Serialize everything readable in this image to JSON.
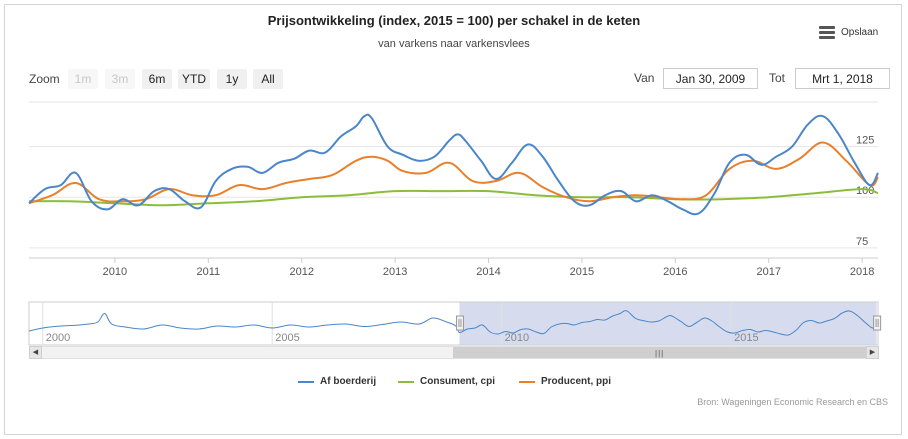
{
  "title": "Prijsontwikkeling (index, 2015 = 100) per schakel in de keten",
  "subtitle": "van varkens naar varkensvlees",
  "menu_label": "Opslaan",
  "range_selector": {
    "zoom_label": "Zoom",
    "buttons": [
      {
        "label": "1m",
        "state": "disabled"
      },
      {
        "label": "3m",
        "state": "disabled"
      },
      {
        "label": "6m",
        "state": "normal"
      },
      {
        "label": "YTD",
        "state": "normal"
      },
      {
        "label": "1y",
        "state": "normal"
      },
      {
        "label": "All",
        "state": "normal"
      }
    ],
    "from_label": "Van",
    "from_value": "Jan 30, 2009",
    "to_label": "Tot",
    "to_value": "Mrt 1, 2018"
  },
  "navigator": {
    "x_ticks": [
      "2000",
      "2005",
      "2010",
      "2015"
    ]
  },
  "credits": "Bron: Wageningen Economic Research en CBS",
  "colors": {
    "blue": "#4a86c8",
    "green": "#8cbd3a",
    "orange": "#e8802c",
    "navigator_mask": "#c8d0e8"
  },
  "chart_data": {
    "type": "line",
    "x_ticks": [
      "2010",
      "2011",
      "2012",
      "2013",
      "2014",
      "2015",
      "2016",
      "2017",
      "2018"
    ],
    "y_ticks": [
      "75",
      "100",
      "125"
    ],
    "xlim": [
      2009.08,
      2018.17
    ],
    "ylim": [
      70,
      147
    ],
    "series": [
      {
        "name": "Af boerderij",
        "color": "#4a86c8",
        "x": [
          2009.08,
          2009.25,
          2009.42,
          2009.58,
          2009.75,
          2009.92,
          2010.08,
          2010.25,
          2010.42,
          2010.58,
          2010.75,
          2010.92,
          2011.08,
          2011.25,
          2011.42,
          2011.58,
          2011.75,
          2011.92,
          2012.08,
          2012.25,
          2012.42,
          2012.58,
          2012.67,
          2012.75,
          2012.92,
          2013.08,
          2013.25,
          2013.42,
          2013.58,
          2013.67,
          2013.75,
          2013.92,
          2014.08,
          2014.25,
          2014.42,
          2014.58,
          2014.75,
          2014.92,
          2015.08,
          2015.25,
          2015.42,
          2015.58,
          2015.75,
          2015.92,
          2016.08,
          2016.25,
          2016.42,
          2016.58,
          2016.75,
          2016.92,
          2017.08,
          2017.25,
          2017.42,
          2017.58,
          2017.75,
          2017.92,
          2018.08,
          2018.17
        ],
        "values": [
          97,
          104,
          106,
          112,
          98,
          94,
          99,
          96,
          103,
          104,
          98,
          95,
          108,
          114,
          115,
          112,
          117,
          119,
          123,
          122,
          130,
          135,
          140,
          139,
          125,
          121,
          118,
          120,
          128,
          131,
          128,
          118,
          109,
          117,
          126,
          120,
          108,
          98,
          96,
          101,
          103,
          98,
          101,
          98,
          94,
          92,
          102,
          117,
          121,
          116,
          120,
          125,
          136,
          140,
          131,
          117,
          106,
          112
        ],
        "labels_right": "100"
      },
      {
        "name": "Consument, cpi",
        "color": "#8cbd3a",
        "x": [
          2009.08,
          2009.5,
          2010.0,
          2010.5,
          2011.0,
          2011.5,
          2012.0,
          2012.5,
          2013.0,
          2013.5,
          2014.0,
          2014.5,
          2015.0,
          2015.5,
          2016.0,
          2016.5,
          2017.0,
          2017.5,
          2018.0,
          2018.17
        ],
        "values": [
          98,
          98,
          97,
          96,
          97,
          98,
          100,
          101,
          103,
          103,
          103,
          101,
          100,
          100,
          99,
          99,
          100,
          102,
          104,
          102
        ]
      },
      {
        "name": "Producent, ppi",
        "color": "#e8802c",
        "x": [
          2009.08,
          2009.33,
          2009.58,
          2009.83,
          2010.08,
          2010.33,
          2010.58,
          2010.83,
          2011.08,
          2011.33,
          2011.58,
          2011.83,
          2012.08,
          2012.33,
          2012.58,
          2012.75,
          2012.92,
          2013.08,
          2013.33,
          2013.58,
          2013.83,
          2014.08,
          2014.33,
          2014.58,
          2014.83,
          2015.08,
          2015.33,
          2015.58,
          2015.83,
          2016.08,
          2016.33,
          2016.58,
          2016.83,
          2017.08,
          2017.33,
          2017.58,
          2017.83,
          2018.08,
          2018.17
        ],
        "values": [
          97,
          101,
          107,
          99,
          98,
          99,
          104,
          101,
          101,
          106,
          104,
          107,
          109,
          111,
          118,
          120,
          118,
          113,
          112,
          117,
          108,
          108,
          112,
          105,
          100,
          98,
          100,
          101,
          100,
          99,
          101,
          114,
          118,
          114,
          119,
          127,
          118,
          106,
          110
        ]
      }
    ],
    "legend_position": "bottom-center",
    "navigator_range": [
      2009.08,
      2018.17
    ]
  }
}
